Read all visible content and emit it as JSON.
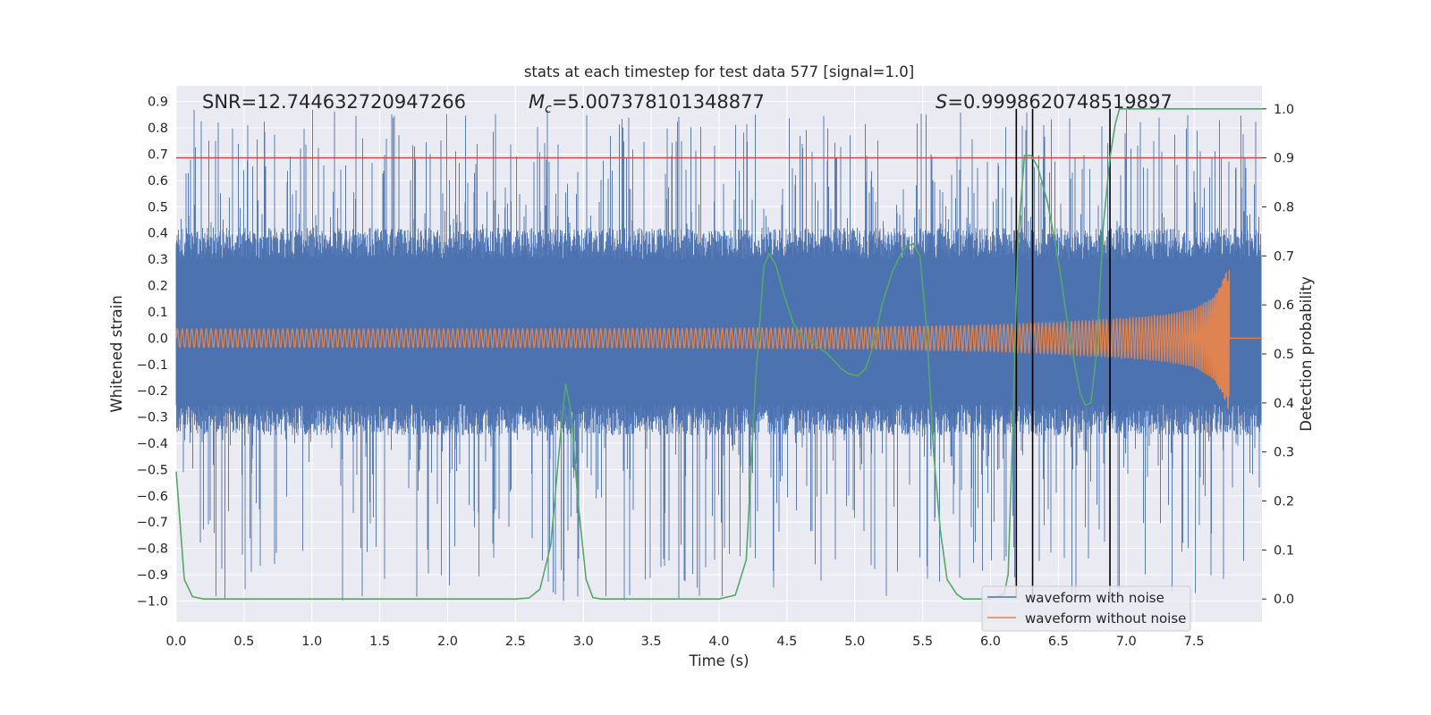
{
  "chart_data": {
    "type": "line",
    "title": "stats at each timestep for test data 577 [signal=1.0]",
    "xlabel": "Time (s)",
    "ylabel": "Whitened strain",
    "y2label": "Detection probability",
    "xlim": [
      0.0,
      8.0
    ],
    "ylim": [
      -1.08,
      0.96
    ],
    "y2lim": [
      -0.047,
      1.047
    ],
    "xticks": [
      "0.0",
      "0.5",
      "1.0",
      "1.5",
      "2.0",
      "2.5",
      "3.0",
      "3.5",
      "4.0",
      "4.5",
      "5.0",
      "5.5",
      "6.0",
      "6.5",
      "7.0",
      "7.5"
    ],
    "yticks": [
      "0.9",
      "0.8",
      "0.7",
      "0.6",
      "0.5",
      "0.4",
      "0.3",
      "0.2",
      "0.1",
      "0.0",
      "−0.1",
      "−0.2",
      "−0.3",
      "−0.4",
      "−0.5",
      "−0.6",
      "−0.7",
      "−0.8",
      "−0.9",
      "−1.0"
    ],
    "y2ticks": [
      "0.0",
      "0.1",
      "0.2",
      "0.3",
      "0.4",
      "0.5",
      "0.6",
      "0.7",
      "0.8",
      "0.9",
      "1.0"
    ],
    "annotations": {
      "snr": "SNR=12.744632720947266",
      "mc_symbol": "M",
      "mc_subscript": "c",
      "mc_value": "=5.007378101348877",
      "s_symbol": "S",
      "s_value": "=0.9998620748519897"
    },
    "legend": {
      "position": "lower-right",
      "entries": [
        "waveform with noise",
        "waveform without noise"
      ]
    },
    "colors": {
      "noisy": "#4c72b0",
      "clean": "#dd8452",
      "probability": "#55a868",
      "threshold": "#c44e52",
      "vertical_markers": "#000000",
      "axes_bg": "#eaeaf2",
      "grid": "#ffffff"
    },
    "threshold_probability": 0.9,
    "vertical_markers_t": [
      6.19,
      6.31,
      6.88
    ],
    "noisy_envelope": {
      "upper": 0.3,
      "lower": -0.25,
      "max_peak": 0.87,
      "min_peak": -1.0
    },
    "series": [
      {
        "name": "waveform with noise",
        "axis": "left",
        "description": "whitened strain with noise, dense band"
      },
      {
        "name": "waveform without noise",
        "axis": "left",
        "description": "chirp signal",
        "envelope_t": [
          0.0,
          1.0,
          2.0,
          3.0,
          4.0,
          5.0,
          6.0,
          6.5,
          7.0,
          7.3,
          7.5,
          7.65,
          7.72,
          7.76,
          7.8,
          8.0
        ],
        "envelope_a": [
          0.035,
          0.035,
          0.035,
          0.036,
          0.038,
          0.041,
          0.05,
          0.06,
          0.075,
          0.09,
          0.11,
          0.16,
          0.23,
          0.28,
          0.0,
          0.0
        ]
      },
      {
        "name": "detection probability",
        "axis": "right",
        "t": [
          0.0,
          0.06,
          0.12,
          0.2,
          0.5,
          1.0,
          1.5,
          2.0,
          2.3,
          2.5,
          2.6,
          2.68,
          2.76,
          2.84,
          2.87,
          2.91,
          2.96,
          3.02,
          3.07,
          3.13,
          3.2,
          3.5,
          3.8,
          4.0,
          4.12,
          4.2,
          4.27,
          4.33,
          4.37,
          4.42,
          4.48,
          4.55,
          4.62,
          4.7,
          4.8,
          4.9,
          4.95,
          5.02,
          5.08,
          5.14,
          5.2,
          5.28,
          5.36,
          5.43,
          5.48,
          5.53,
          5.58,
          5.63,
          5.68,
          5.75,
          5.8,
          6.0,
          6.1,
          6.13,
          6.17,
          6.2,
          6.25,
          6.3,
          6.35,
          6.42,
          6.5,
          6.58,
          6.66,
          6.7,
          6.74,
          6.78,
          6.83,
          6.88,
          6.92,
          6.95,
          7.2,
          7.5,
          8.0
        ],
        "p": [
          0.26,
          0.04,
          0.005,
          0.0,
          0.0,
          0.0,
          0.0,
          0.0,
          0.0,
          0.0,
          0.002,
          0.02,
          0.11,
          0.36,
          0.44,
          0.38,
          0.2,
          0.04,
          0.003,
          0.0,
          0.0,
          0.0,
          0.0,
          0.0,
          0.008,
          0.08,
          0.45,
          0.68,
          0.705,
          0.68,
          0.62,
          0.56,
          0.535,
          0.52,
          0.5,
          0.47,
          0.46,
          0.455,
          0.47,
          0.52,
          0.6,
          0.67,
          0.715,
          0.725,
          0.7,
          0.55,
          0.3,
          0.14,
          0.04,
          0.01,
          0.0,
          0.0,
          0.01,
          0.05,
          0.4,
          0.72,
          0.905,
          0.905,
          0.88,
          0.81,
          0.69,
          0.54,
          0.42,
          0.395,
          0.4,
          0.5,
          0.76,
          0.9,
          0.97,
          1.0,
          1.0,
          1.0,
          1.0
        ]
      }
    ]
  }
}
